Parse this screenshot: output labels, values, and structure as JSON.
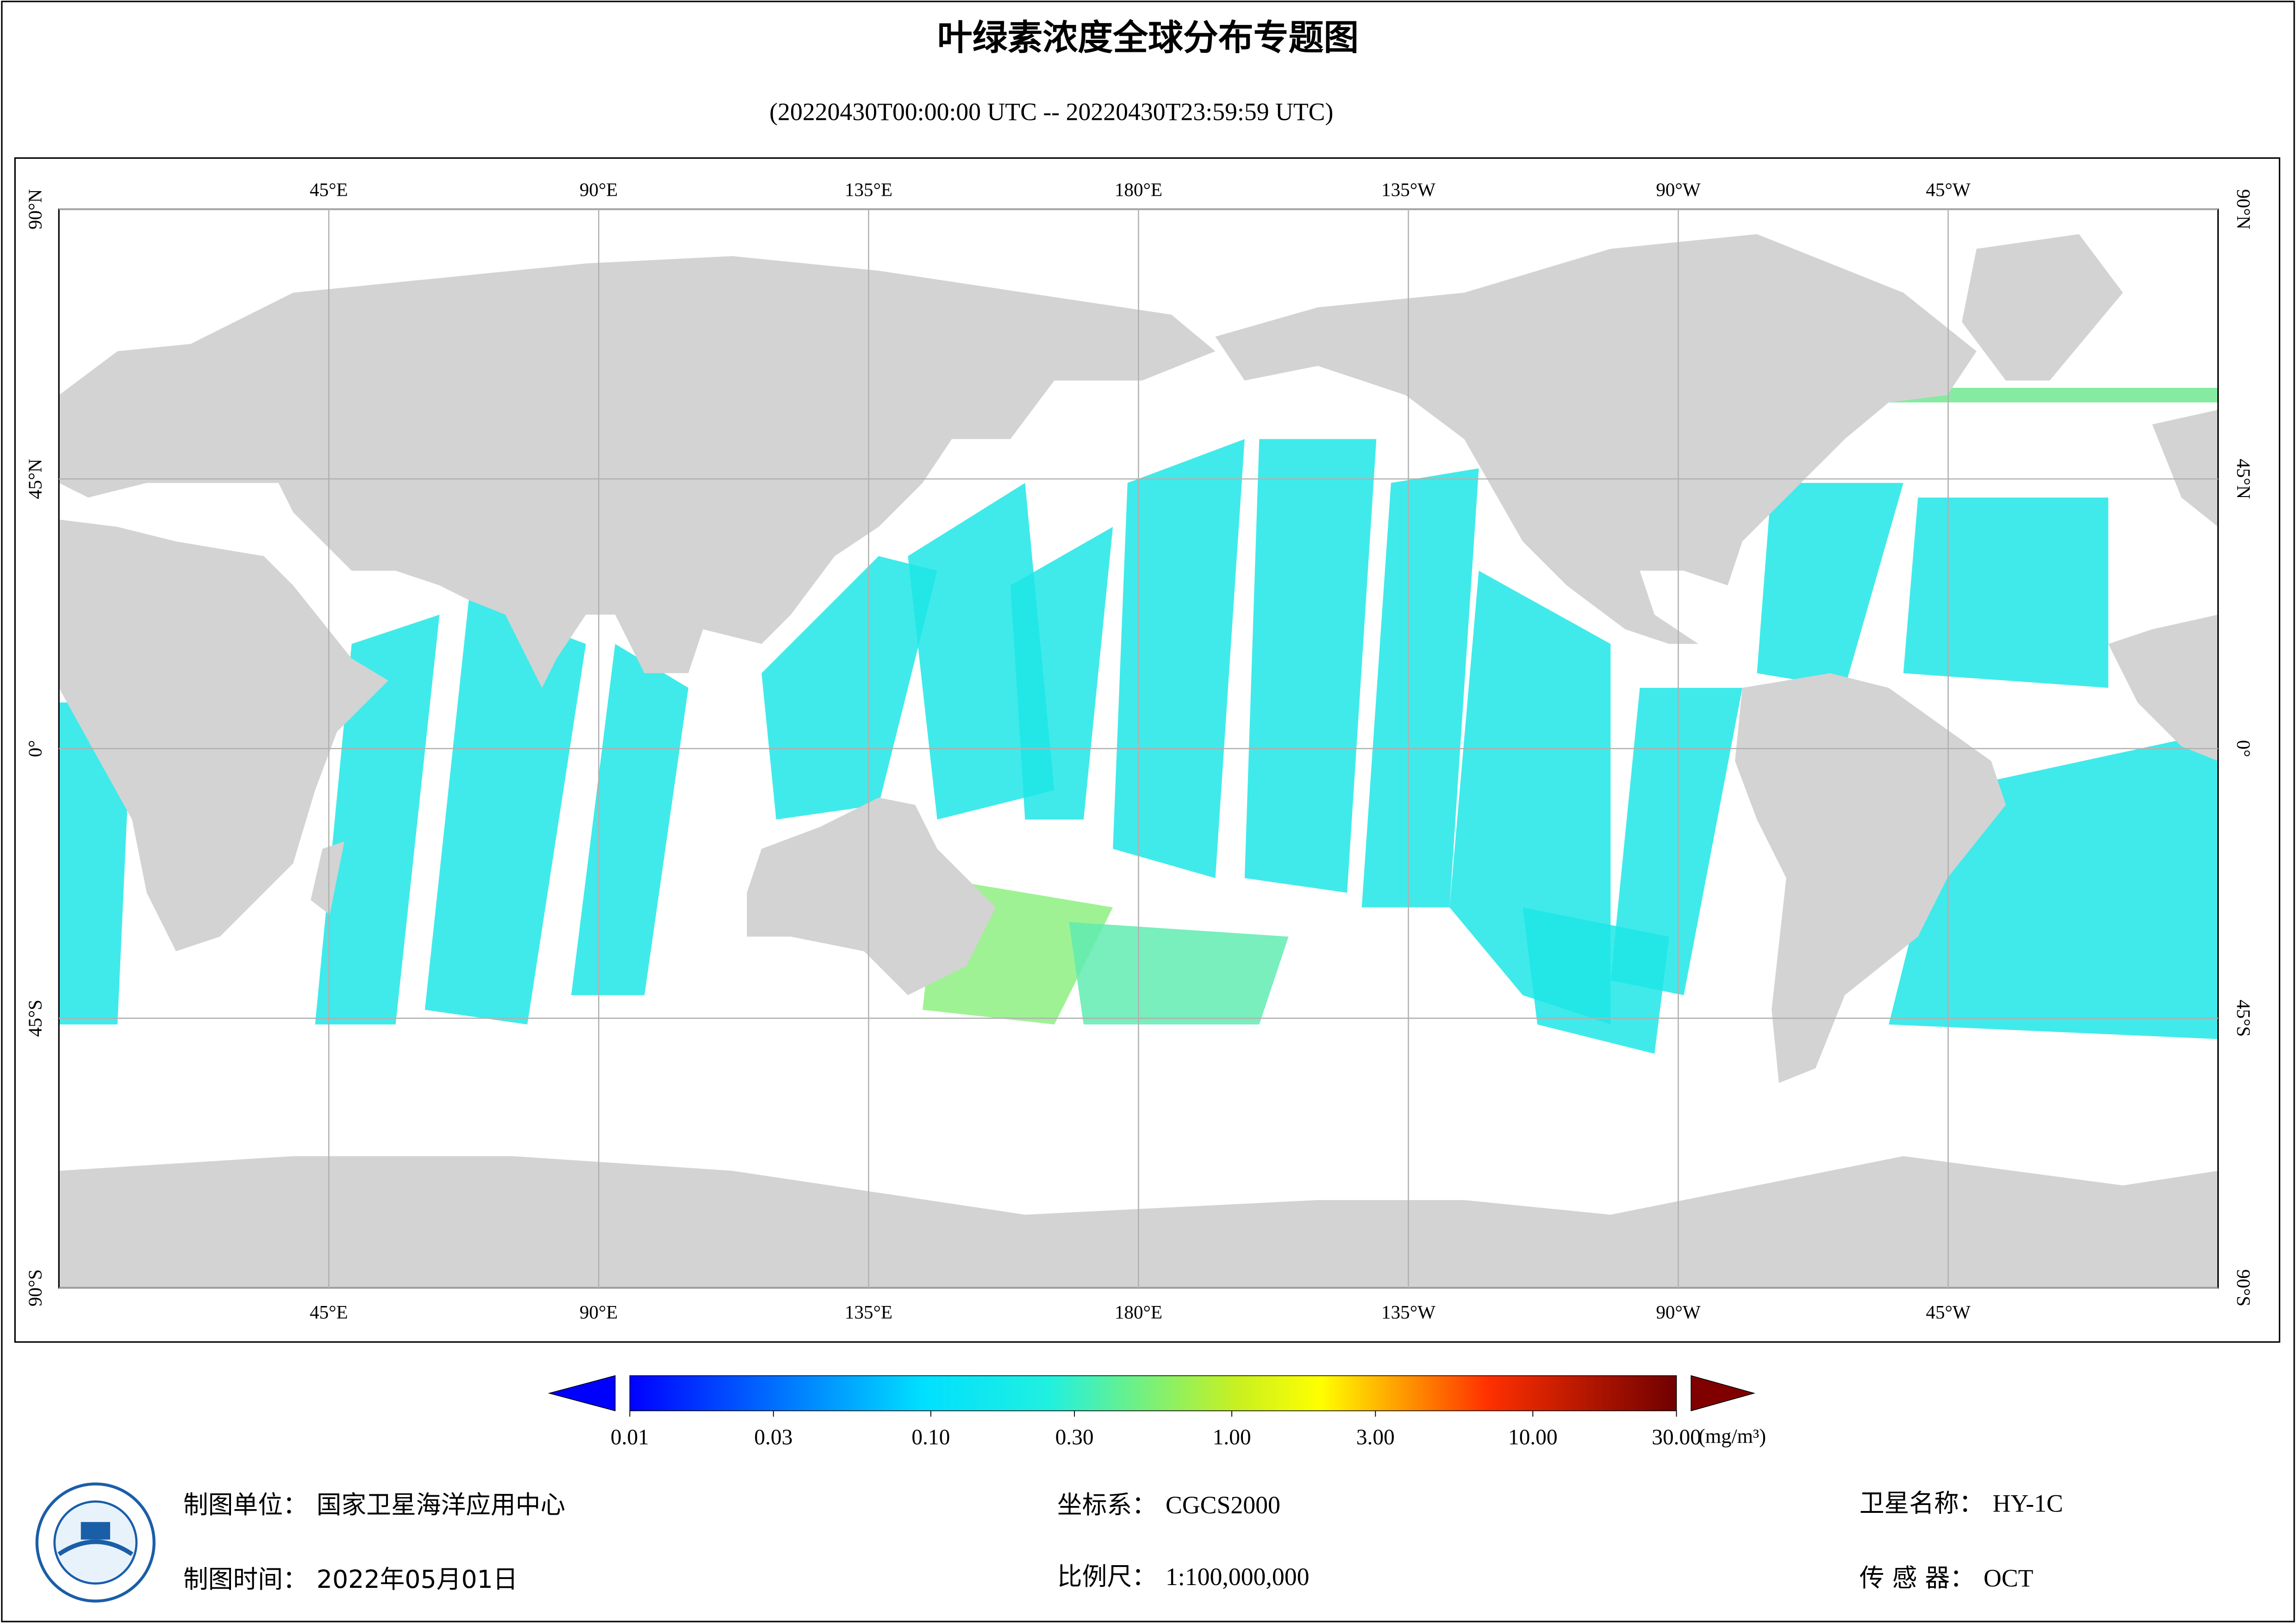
{
  "header": {
    "title": "叶绿素浓度全球分布专题图",
    "subtitle": "(20220430T00:00:00 UTC -- 20220430T23:59:59 UTC)"
  },
  "map": {
    "lon_range": [
      0,
      360
    ],
    "lat_range": [
      -90,
      90
    ],
    "lon_ticks": [
      {
        "value": 45,
        "label": "45°E"
      },
      {
        "value": 90,
        "label": "90°E"
      },
      {
        "value": 135,
        "label": "135°E"
      },
      {
        "value": 180,
        "label": "180°E"
      },
      {
        "value": 225,
        "label": "135°W"
      },
      {
        "value": 270,
        "label": "90°W"
      },
      {
        "value": 315,
        "label": "45°W"
      }
    ],
    "lat_ticks": [
      {
        "value": 90,
        "label": "90°N"
      },
      {
        "value": 45,
        "label": "45°N"
      },
      {
        "value": 0,
        "label": "0°"
      },
      {
        "value": -45,
        "label": "45°S"
      },
      {
        "value": -90,
        "label": "90°S"
      }
    ]
  },
  "colorbar": {
    "scale": "log",
    "range": [
      0.01,
      30
    ],
    "unit": "(mg/m³)",
    "ticks": [
      {
        "value": 0.01,
        "label": "0.01"
      },
      {
        "value": 0.03,
        "label": "0.03"
      },
      {
        "value": 0.1,
        "label": "0.10"
      },
      {
        "value": 0.3,
        "label": "0.30"
      },
      {
        "value": 1,
        "label": "1.00"
      },
      {
        "value": 3,
        "label": "3.00"
      },
      {
        "value": 10,
        "label": "10.00"
      },
      {
        "value": 30,
        "label": "30.00"
      }
    ]
  },
  "footer": [
    {
      "label": "制图单位：",
      "value": "国家卫星海洋应用中心"
    },
    {
      "label": "坐标系：",
      "value": "CGCS2000"
    },
    {
      "label": "卫星名称：",
      "value": "HY-1C"
    },
    {
      "label": "制图时间：",
      "value": "2022年05月01日"
    },
    {
      "label": "比例尺：",
      "value": "1:100,000,000"
    },
    {
      "label": "传 感 器：",
      "value": "OCT"
    }
  ]
}
